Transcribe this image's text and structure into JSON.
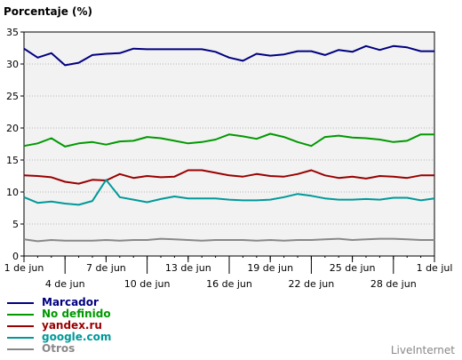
{
  "chart_data": {
    "type": "line",
    "title": "Porcentaje (%)",
    "ylim": [
      0,
      35
    ],
    "yticks": [
      0,
      5,
      10,
      15,
      20,
      25,
      30,
      35
    ],
    "x": [
      "1 jun",
      "2 jun",
      "3 jun",
      "4 jun",
      "5 jun",
      "6 jun",
      "7 jun",
      "8 jun",
      "9 jun",
      "10 jun",
      "11 jun",
      "12 jun",
      "13 jun",
      "14 jun",
      "15 jun",
      "16 jun",
      "17 jun",
      "18 jun",
      "19 jun",
      "20 jun",
      "21 jun",
      "22 jun",
      "23 jun",
      "24 jun",
      "25 jun",
      "26 jun",
      "27 jun",
      "28 jun",
      "29 jun",
      "30 jun",
      "1 jul"
    ],
    "xtick_labels_top": [
      "1 de jun",
      "7 de jun",
      "13 de jun",
      "19 de jun",
      "25 de jun",
      "1 de jul"
    ],
    "xtick_labels_bottom": [
      "4 de jun",
      "10 de jun",
      "16 de jun",
      "22 de jun",
      "28 de jun"
    ],
    "grid": true,
    "legend_position": "bottom-left",
    "series": [
      {
        "name": "Marcador",
        "color": "#000080",
        "values": [
          32.4,
          31.0,
          31.7,
          29.8,
          30.2,
          31.4,
          31.6,
          31.7,
          32.4,
          32.3,
          32.3,
          32.3,
          32.3,
          32.3,
          31.9,
          31.0,
          30.5,
          31.6,
          31.3,
          31.5,
          32.0,
          32.0,
          31.4,
          32.2,
          31.9,
          32.8,
          32.2,
          32.8,
          32.6,
          32.0,
          32.0
        ]
      },
      {
        "name": "No definido",
        "color": "#009900",
        "values": [
          17.2,
          17.6,
          18.4,
          17.1,
          17.6,
          17.8,
          17.4,
          17.9,
          18.0,
          18.6,
          18.4,
          18.0,
          17.6,
          17.8,
          18.2,
          19.0,
          18.7,
          18.3,
          19.1,
          18.6,
          17.8,
          17.2,
          18.6,
          18.8,
          18.5,
          18.4,
          18.2,
          17.8,
          18.0,
          19.0,
          19.0
        ]
      },
      {
        "name": "yandex.ru",
        "color": "#990000",
        "values": [
          12.6,
          12.5,
          12.3,
          11.6,
          11.3,
          11.9,
          11.8,
          12.8,
          12.2,
          12.5,
          12.3,
          12.4,
          13.4,
          13.4,
          13.0,
          12.6,
          12.4,
          12.8,
          12.5,
          12.4,
          12.8,
          13.4,
          12.6,
          12.2,
          12.4,
          12.1,
          12.5,
          12.4,
          12.2,
          12.6,
          12.6
        ]
      },
      {
        "name": "google.com",
        "color": "#009999",
        "values": [
          9.2,
          8.3,
          8.5,
          8.2,
          8.0,
          8.6,
          11.9,
          9.2,
          8.8,
          8.4,
          8.9,
          9.3,
          9.0,
          9.0,
          9.0,
          8.8,
          8.7,
          8.7,
          8.8,
          9.2,
          9.7,
          9.4,
          9.0,
          8.8,
          8.8,
          8.9,
          8.8,
          9.1,
          9.1,
          8.7,
          9.0
        ]
      },
      {
        "name": "Otros",
        "color": "#888888",
        "values": [
          2.6,
          2.3,
          2.5,
          2.4,
          2.4,
          2.4,
          2.5,
          2.4,
          2.5,
          2.5,
          2.7,
          2.6,
          2.5,
          2.4,
          2.5,
          2.5,
          2.5,
          2.4,
          2.5,
          2.4,
          2.5,
          2.5,
          2.6,
          2.7,
          2.5,
          2.6,
          2.7,
          2.7,
          2.6,
          2.5,
          2.5
        ]
      }
    ]
  },
  "branding": "LiveInternet"
}
